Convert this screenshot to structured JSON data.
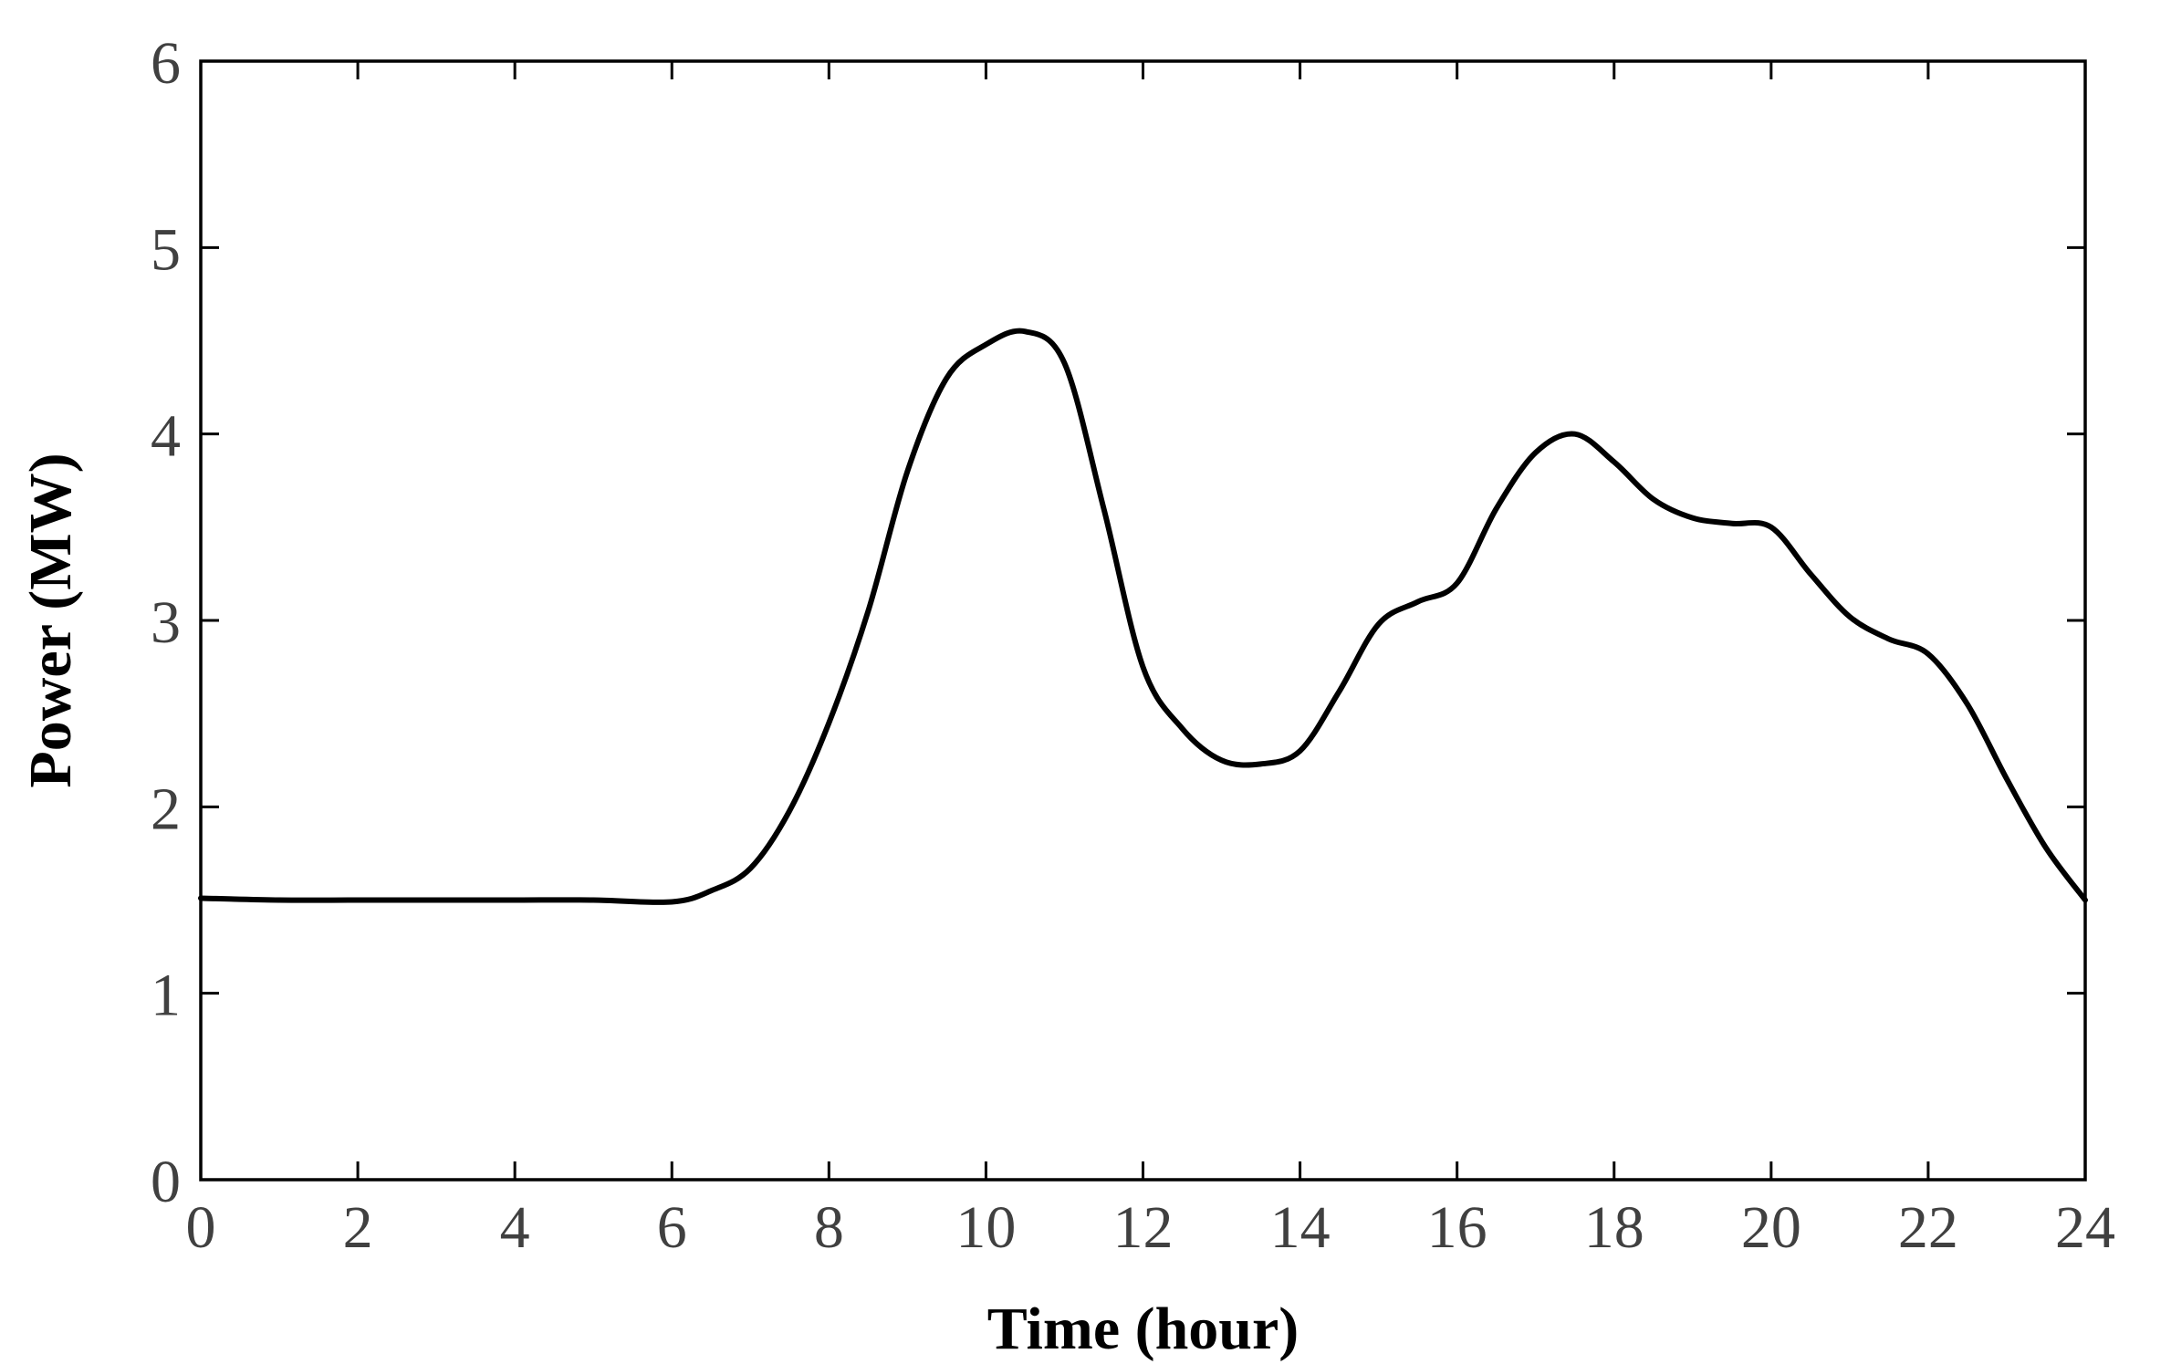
{
  "chart_data": {
    "type": "line",
    "title": "",
    "xlabel": "Time (hour)",
    "ylabel": "Power (MW)",
    "xlim": [
      0,
      24
    ],
    "ylim": [
      0,
      6
    ],
    "xticks": [
      0,
      2,
      4,
      6,
      8,
      10,
      12,
      14,
      16,
      18,
      20,
      22,
      24
    ],
    "yticks": [
      0,
      1,
      2,
      3,
      4,
      5,
      6
    ],
    "grid": false,
    "legend": "none",
    "line_color": "#000000",
    "series": [
      {
        "x": [
          0,
          1,
          2,
          3,
          4,
          5,
          6,
          6.5,
          7,
          7.5,
          8,
          8.5,
          9,
          9.5,
          10,
          10.5,
          11,
          11.5,
          12,
          12.5,
          13,
          13.5,
          14,
          14.5,
          15,
          15.5,
          16,
          16.5,
          17,
          17.5,
          18,
          18.5,
          19,
          19.5,
          20,
          20.5,
          21,
          21.5,
          22,
          22.5,
          23,
          23.5,
          24
        ],
        "y": [
          1.51,
          1.5,
          1.5,
          1.5,
          1.5,
          1.5,
          1.49,
          1.55,
          1.67,
          1.98,
          2.45,
          3.05,
          3.8,
          4.3,
          4.48,
          4.55,
          4.38,
          3.6,
          2.75,
          2.42,
          2.25,
          2.23,
          2.3,
          2.62,
          2.98,
          3.1,
          3.2,
          3.6,
          3.9,
          4.0,
          3.85,
          3.65,
          3.55,
          3.52,
          3.5,
          3.25,
          3.02,
          2.9,
          2.82,
          2.55,
          2.15,
          1.78,
          1.5
        ]
      }
    ]
  }
}
